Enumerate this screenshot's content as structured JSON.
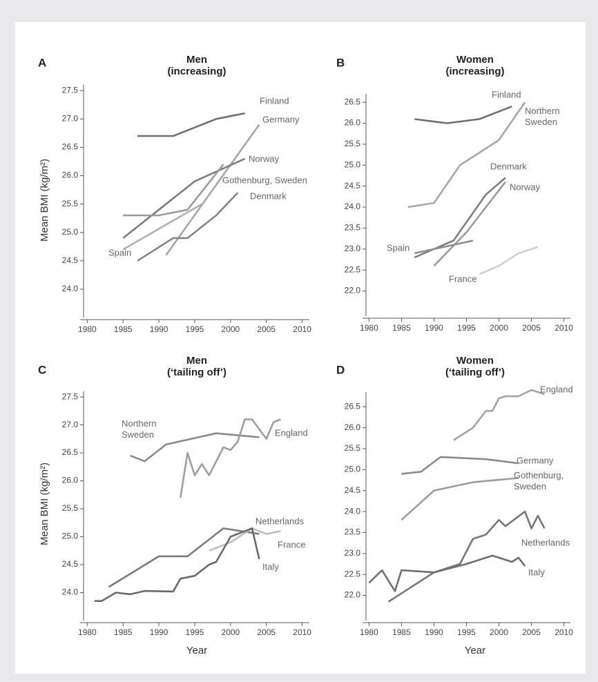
{
  "chart_data": [
    {
      "type": "line",
      "letter": "A",
      "title": "Men",
      "subtitle": "(increasing)",
      "ylabel": "Mean BMI (kg/m²)",
      "xlim": [
        1979,
        2011
      ],
      "xticks": [
        1980,
        1985,
        1990,
        1995,
        2000,
        2005,
        2010
      ],
      "ylim": [
        23.5,
        27.6
      ],
      "yticks": [
        {
          "value": 24,
          "label": "24.0"
        },
        {
          "value": 24.5,
          "label": "24.5"
        },
        {
          "value": 25,
          "label": "25.0"
        },
        {
          "value": 25.5,
          "label": "25.5"
        },
        {
          "value": 26,
          "label": "26.0"
        },
        {
          "value": 26.5,
          "label": "26.5"
        },
        {
          "value": 27,
          "label": "27.0"
        },
        {
          "value": 27.5,
          "label": "27.5"
        }
      ],
      "series": [
        {
          "name": "Finland",
          "color": "#6f6f6f",
          "x": [
            1987,
            1992,
            1998,
            2002
          ],
          "values": [
            26.7,
            26.7,
            27.0,
            27.1
          ]
        },
        {
          "name": "Germany",
          "color": "#a6a6a6",
          "x": [
            1991,
            2004
          ],
          "values": [
            24.6,
            26.9
          ]
        },
        {
          "name": "Norway",
          "color": "#7d7d7d",
          "x": [
            1985,
            1990,
            1995,
            2002
          ],
          "values": [
            24.9,
            25.4,
            25.9,
            26.3
          ]
        },
        {
          "name": "Gothenburg, Sweden",
          "color": "#9a9a9a",
          "x": [
            1985,
            1990,
            1994,
            1999
          ],
          "values": [
            25.3,
            25.3,
            25.4,
            26.2
          ]
        },
        {
          "name": "Denmark",
          "color": "#858585",
          "x": [
            1987,
            1992,
            1994,
            1998,
            2001
          ],
          "values": [
            24.5,
            24.9,
            24.9,
            25.3,
            25.7
          ]
        },
        {
          "name": "Spain",
          "color": "#b0b0b0",
          "x": [
            1985,
            1996
          ],
          "values": [
            24.7,
            25.5
          ]
        }
      ]
    },
    {
      "type": "line",
      "letter": "B",
      "title": "Women",
      "subtitle": "(increasing)",
      "xlim": [
        1979,
        2011
      ],
      "xticks": [
        1980,
        1985,
        1990,
        1995,
        2000,
        2005,
        2010
      ],
      "ylim": [
        21.4,
        26.7
      ],
      "yticks": [
        {
          "value": 22,
          "label": "22.0"
        },
        {
          "value": 22.5,
          "label": "22.5"
        },
        {
          "value": 23,
          "label": "23.0"
        },
        {
          "value": 23.5,
          "label": "23.5"
        },
        {
          "value": 24,
          "label": "24.0"
        },
        {
          "value": 24.5,
          "label": "24.5"
        },
        {
          "value": 25,
          "label": "25.0"
        },
        {
          "value": 25.5,
          "label": "25.5"
        },
        {
          "value": 26,
          "label": "26.0"
        },
        {
          "value": 26.5,
          "label": "26.5"
        }
      ],
      "series": [
        {
          "name": "Finland",
          "color": "#6f6f6f",
          "x": [
            1987,
            1992,
            1997,
            2002
          ],
          "values": [
            26.1,
            26.0,
            26.1,
            26.4
          ]
        },
        {
          "name": "Northern Sweden",
          "color": "#a6a6a6",
          "x": [
            1986,
            1990,
            1994,
            1997,
            2000,
            2004
          ],
          "values": [
            24.0,
            24.1,
            25.0,
            25.3,
            25.6,
            26.5
          ]
        },
        {
          "name": "Denmark",
          "color": "#7d7d7d",
          "x": [
            1987,
            1993,
            1998,
            2001
          ],
          "values": [
            22.8,
            23.2,
            24.3,
            24.7
          ]
        },
        {
          "name": "Norway",
          "color": "#999999",
          "x": [
            1990,
            1995,
            2001
          ],
          "values": [
            22.6,
            23.4,
            24.6
          ]
        },
        {
          "name": "Spain",
          "color": "#8e8e8e",
          "x": [
            1987,
            1996
          ],
          "values": [
            22.9,
            23.2
          ]
        },
        {
          "name": "France",
          "color": "#cfcfcf",
          "x": [
            1997,
            2000,
            2003,
            2006
          ],
          "values": [
            22.4,
            22.6,
            22.9,
            23.05
          ]
        }
      ]
    },
    {
      "type": "line",
      "letter": "C",
      "title": "Men",
      "subtitle": "(‘tailing off’)",
      "ylabel": "Mean BMI (kg/m²)",
      "xlabel": "Year",
      "xlim": [
        1979,
        2011
      ],
      "xticks": [
        1980,
        1985,
        1990,
        1995,
        2000,
        2005,
        2010
      ],
      "ylim": [
        23.5,
        27.6
      ],
      "yticks": [
        {
          "value": 24,
          "label": "24.0"
        },
        {
          "value": 24.5,
          "label": "24.5"
        },
        {
          "value": 25,
          "label": "25.0"
        },
        {
          "value": 25.5,
          "label": "25.5"
        },
        {
          "value": 26,
          "label": "26.0"
        },
        {
          "value": 26.5,
          "label": "26.5"
        },
        {
          "value": 27,
          "label": "27.0"
        },
        {
          "value": 27.5,
          "label": "27.5"
        }
      ],
      "series": [
        {
          "name": "Northern Sweden",
          "color": "#8a8a8a",
          "x": [
            1986,
            1988,
            1991,
            1998,
            2004
          ],
          "values": [
            26.45,
            26.35,
            26.65,
            26.85,
            26.78
          ]
        },
        {
          "name": "England",
          "color": "#9e9e9e",
          "x": [
            1993,
            1994,
            1995,
            1996,
            1997,
            1999,
            2000,
            2001,
            2002,
            2003,
            2005,
            2006,
            2007
          ],
          "values": [
            25.7,
            26.5,
            26.1,
            26.3,
            26.1,
            26.6,
            26.55,
            26.7,
            27.1,
            27.1,
            26.75,
            27.05,
            27.1
          ]
        },
        {
          "name": "Netherlands",
          "color": "#7a7a7a",
          "x": [
            1983,
            1990,
            1994,
            1999,
            2004
          ],
          "values": [
            24.1,
            24.65,
            24.65,
            25.15,
            25.05
          ]
        },
        {
          "name": "France",
          "color": "#bdbdbd",
          "x": [
            1997,
            2000,
            2003,
            2005,
            2007
          ],
          "values": [
            24.75,
            24.9,
            25.15,
            25.05,
            25.1
          ]
        },
        {
          "name": "Italy",
          "color": "#6a6a6a",
          "x": [
            1981,
            1982,
            1984,
            1986,
            1988,
            1992,
            1993,
            1995,
            1997,
            1998,
            2000,
            2002,
            2003,
            2004
          ],
          "values": [
            23.85,
            23.85,
            24.0,
            23.97,
            24.03,
            24.02,
            24.25,
            24.3,
            24.5,
            24.55,
            25.0,
            25.1,
            25.15,
            24.6
          ]
        }
      ]
    },
    {
      "type": "line",
      "letter": "D",
      "title": "Women",
      "subtitle": "(‘tailing off’)",
      "xlabel": "Year",
      "xlim": [
        1979,
        2011
      ],
      "xticks": [
        1980,
        1985,
        1990,
        1995,
        2000,
        2005,
        2010
      ],
      "ylim": [
        21.4,
        26.85
      ],
      "yticks": [
        {
          "value": 22,
          "label": "22.0"
        },
        {
          "value": 22.5,
          "label": "22.5"
        },
        {
          "value": 23,
          "label": "23.0"
        },
        {
          "value": 23.5,
          "label": "23.5"
        },
        {
          "value": 24,
          "label": "24.0"
        },
        {
          "value": 24.5,
          "label": "24.5"
        },
        {
          "value": 25,
          "label": "25.0"
        },
        {
          "value": 25.5,
          "label": "25.5"
        },
        {
          "value": 26,
          "label": "26.0"
        },
        {
          "value": 26.5,
          "label": "26.5"
        }
      ],
      "series": [
        {
          "name": "England",
          "color": "#a3a3a3",
          "x": [
            1993,
            1996,
            1998,
            1999,
            2000,
            2001,
            2003,
            2005,
            2007
          ],
          "values": [
            25.7,
            26.0,
            26.4,
            26.4,
            26.7,
            26.75,
            26.75,
            26.9,
            26.8
          ]
        },
        {
          "name": "Germany",
          "color": "#8a8a8a",
          "x": [
            1985,
            1988,
            1991,
            1998,
            2003
          ],
          "values": [
            24.9,
            24.95,
            25.3,
            25.25,
            25.15
          ]
        },
        {
          "name": "Gothenburg, Sweden",
          "color": "#9a9a9a",
          "x": [
            1985,
            1990,
            1996,
            2003
          ],
          "values": [
            23.8,
            24.5,
            24.7,
            24.8
          ]
        },
        {
          "name": "Netherlands",
          "color": "#767676",
          "x": [
            1983,
            1990,
            1994,
            1996,
            1998,
            2000,
            2001,
            2004,
            2005,
            2006,
            2007
          ],
          "values": [
            21.85,
            22.55,
            22.75,
            23.35,
            23.45,
            23.8,
            23.65,
            24.0,
            23.6,
            23.9,
            23.6
          ]
        },
        {
          "name": "Italy",
          "color": "#6e6e6e",
          "x": [
            1980,
            1982,
            1984,
            1985,
            1990,
            1995,
            1999,
            2002,
            2003,
            2004
          ],
          "values": [
            22.3,
            22.6,
            22.1,
            22.6,
            22.55,
            22.75,
            22.95,
            22.8,
            22.9,
            22.7
          ]
        }
      ]
    }
  ]
}
